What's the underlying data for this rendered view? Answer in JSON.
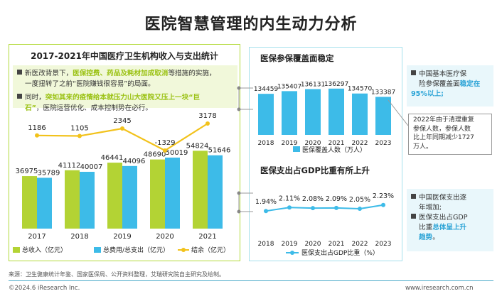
{
  "page_title": "医院智慧管理的内生动力分析",
  "left": {
    "title": "2017-2021年中国医疗卫生机构收入与支出统计",
    "note1": [
      "新医改背景下，",
      "医保控费、药品及耗材加成取消",
      "等措施的实施，",
      "一度扭转了之前“医院赚钱很容易”的局面。"
    ],
    "note2": [
      "同时，",
      "突如其来的疫情给本就压力山大医院又压上一块“巨",
      "石”",
      "，医院运营优化、成本控制势在必行。"
    ]
  },
  "right_top": {
    "title": "医保参保覆盖面稳定",
    "side": [
      "中国基本医疗保",
      "险参保覆盖面",
      "稳定在95%以上;"
    ],
    "callout": [
      "2022年由于清理重复",
      "参保人数，参保人数",
      "比上年同期减少1727",
      "万人。"
    ]
  },
  "right_bottom": {
    "title": "医保支出占GDP比重有所上升",
    "side1": [
      "中国医保支出逐",
      "年增加;"
    ],
    "side2": [
      "医保支出占GDP",
      "比重",
      "总体呈上升",
      "趋势",
      "。"
    ]
  },
  "source": "来源：卫生健康统计年鉴、国家医保局、公开资料整理，艾瑞研究院自主研究及绘制。",
  "footer_left": "©2024.6 iResearch Inc.",
  "footer_right": "www.iresearch.com.cn",
  "colors": {
    "green": "#b3d334",
    "blue": "#3dbbe8",
    "yellow": "#f2c21b",
    "dark_blue": "#2aa3d6"
  },
  "chart_data": [
    {
      "type": "bar",
      "title": "2017-2021年中国医疗卫生机构收入与支出统计",
      "categories": [
        "2017",
        "2018",
        "2019",
        "2020",
        "2021"
      ],
      "series": [
        {
          "name": "总收入（亿元）",
          "kind": "bar",
          "values": [
            36975,
            41112,
            46441,
            48690,
            54824
          ]
        },
        {
          "name": "总费用/总支出（亿元）",
          "kind": "bar",
          "values": [
            35789,
            40007,
            44096,
            50019,
            51646
          ]
        },
        {
          "name": "结余（亿元）",
          "kind": "line",
          "values": [
            1186,
            1105,
            2345,
            -1329,
            3178
          ]
        }
      ],
      "legend": "bottom"
    },
    {
      "type": "bar",
      "categories": [
        "2018",
        "2019",
        "2020",
        "2021",
        "2022",
        "2023"
      ],
      "series": [
        {
          "name": "医保覆盖人数（万人）",
          "values": [
            134459,
            135407,
            136131,
            136297,
            134570,
            133387
          ]
        }
      ],
      "legend": "bottom"
    },
    {
      "type": "line",
      "categories": [
        "2018",
        "2019",
        "2020",
        "2021",
        "2022",
        "2023"
      ],
      "series": [
        {
          "name": "医保支出占GDP比重（%）",
          "values": [
            1.94,
            2.11,
            2.08,
            2.09,
            2.05,
            2.23
          ],
          "labels": [
            "1.94%",
            "2.11%",
            "2.08%",
            "2.09%",
            "2.05%",
            "2.23%"
          ]
        }
      ],
      "legend": "bottom"
    }
  ]
}
